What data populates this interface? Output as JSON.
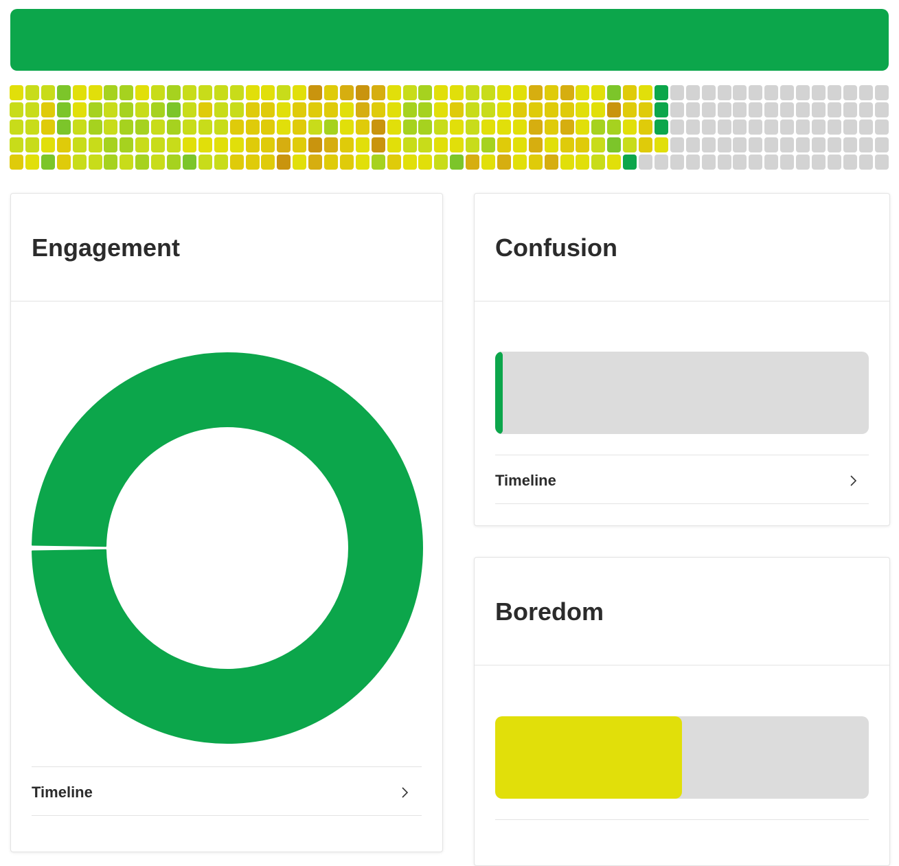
{
  "header_bar": {
    "color": "#0ca64b"
  },
  "colors": {
    "track": "#dcdcdc",
    "empty_cell": "#d3d3d3",
    "accent_green": "#0ca64b",
    "level": [
      "#0ca64b",
      "#7cc52a",
      "#a6d21f",
      "#c8dc1a",
      "#e1df0a",
      "#dfcb0a",
      "#d6ae10",
      "#c9940e"
    ]
  },
  "heatmap": {
    "rows": [
      [
        4,
        3,
        3,
        1,
        4,
        4,
        2,
        2,
        4,
        3,
        2,
        3,
        3,
        3,
        3,
        4,
        4,
        3,
        4,
        7,
        5,
        6,
        7,
        6,
        4,
        3,
        2,
        4,
        4,
        3,
        3,
        4,
        4,
        6,
        5,
        6,
        4,
        4,
        1,
        5,
        4,
        0,
        -1,
        -1,
        -1,
        -1,
        -1,
        -1,
        -1,
        -1,
        -1,
        -1,
        -1,
        -1,
        -1,
        -1
      ],
      [
        3,
        3,
        5,
        1,
        4,
        2,
        3,
        2,
        3,
        2,
        1,
        3,
        5,
        3,
        3,
        5,
        5,
        4,
        5,
        5,
        5,
        4,
        6,
        5,
        4,
        2,
        2,
        4,
        5,
        3,
        3,
        4,
        5,
        5,
        5,
        5,
        4,
        4,
        7,
        5,
        5,
        0,
        -1,
        -1,
        -1,
        -1,
        -1,
        -1,
        -1,
        -1,
        -1,
        -1,
        -1,
        -1,
        -1,
        -1
      ],
      [
        3,
        3,
        5,
        1,
        3,
        2,
        3,
        2,
        2,
        3,
        2,
        3,
        3,
        3,
        5,
        5,
        5,
        4,
        5,
        3,
        2,
        4,
        5,
        7,
        4,
        2,
        2,
        3,
        4,
        3,
        4,
        4,
        4,
        6,
        5,
        6,
        4,
        2,
        2,
        4,
        5,
        0,
        -1,
        -1,
        -1,
        -1,
        -1,
        -1,
        -1,
        -1,
        -1,
        -1,
        -1,
        -1,
        -1,
        -1
      ],
      [
        3,
        3,
        4,
        5,
        3,
        3,
        2,
        2,
        3,
        3,
        3,
        4,
        4,
        4,
        4,
        5,
        5,
        6,
        5,
        7,
        6,
        5,
        4,
        7,
        4,
        3,
        3,
        4,
        4,
        3,
        2,
        5,
        4,
        6,
        4,
        5,
        5,
        3,
        1,
        3,
        5,
        4,
        -1,
        -1,
        -1,
        -1,
        -1,
        -1,
        -1,
        -1,
        -1,
        -1,
        -1,
        -1,
        -1,
        -1
      ],
      [
        5,
        4,
        1,
        5,
        3,
        3,
        2,
        3,
        2,
        3,
        2,
        1,
        3,
        3,
        5,
        5,
        5,
        7,
        4,
        6,
        5,
        5,
        4,
        2,
        5,
        4,
        4,
        3,
        1,
        6,
        4,
        6,
        4,
        5,
        6,
        4,
        4,
        3,
        4,
        0,
        -1,
        -1,
        -1,
        -1,
        -1,
        -1,
        -1,
        -1,
        -1,
        -1,
        -1,
        -1,
        -1,
        -1,
        -1,
        -1
      ]
    ]
  },
  "engagement": {
    "title": "Engagement",
    "donut_fraction": 0.995,
    "timeline_label": "Timeline"
  },
  "confusion": {
    "title": "Confusion",
    "fraction": 0.02,
    "timeline_label": "Timeline"
  },
  "boredom": {
    "title": "Boredom",
    "fraction": 0.5
  }
}
